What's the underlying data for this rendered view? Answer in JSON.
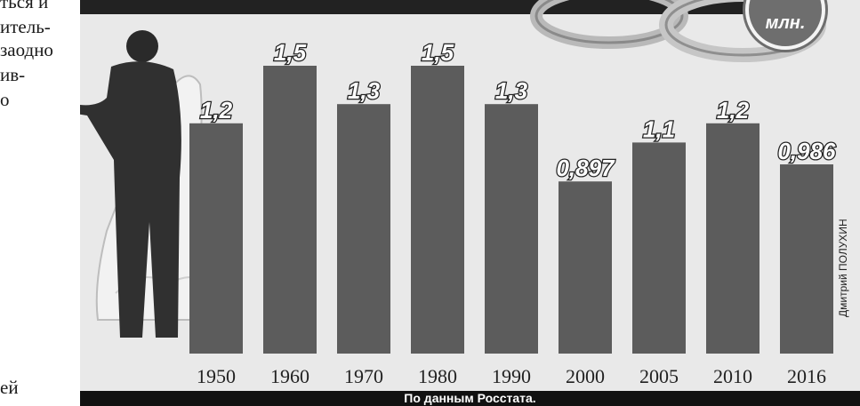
{
  "article_text": [
    "ться и",
    "итель-",
    "заодно",
    "ив-",
    "о",
    "ей"
  ],
  "unit": "млн.",
  "credit": "Дмитрий ПОЛУХИН",
  "source": "По данным Росстата.",
  "colors": {
    "bar": "#5c5c5c",
    "background": "#e9e9e9",
    "label": "#ffffff"
  },
  "chart_data": {
    "type": "bar",
    "categories": [
      "1950",
      "1960",
      "1970",
      "1980",
      "1990",
      "2000",
      "2005",
      "2010",
      "2016"
    ],
    "values": [
      1.2,
      1.5,
      1.3,
      1.5,
      1.3,
      0.897,
      1.1,
      1.2,
      0.986
    ],
    "labels": [
      "1,2",
      "1,5",
      "1,3",
      "1,5",
      "1,3",
      "0,897",
      "1,1",
      "1,2",
      "0,986"
    ],
    "unit": "млн.",
    "ylim": [
      0,
      1.5
    ],
    "grid": false
  }
}
